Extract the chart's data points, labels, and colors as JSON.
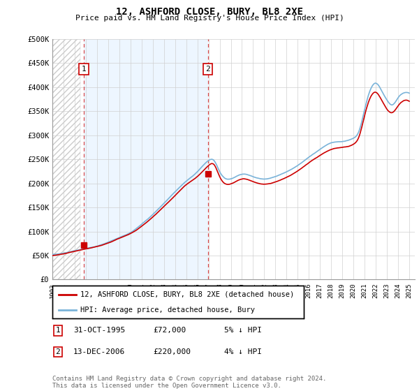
{
  "title": "12, ASHFORD CLOSE, BURY, BL8 2XE",
  "subtitle": "Price paid vs. HM Land Registry's House Price Index (HPI)",
  "ylim": [
    0,
    500000
  ],
  "yticks": [
    0,
    50000,
    100000,
    150000,
    200000,
    250000,
    300000,
    350000,
    400000,
    450000,
    500000
  ],
  "ytick_labels": [
    "£0",
    "£50K",
    "£100K",
    "£150K",
    "£200K",
    "£250K",
    "£300K",
    "£350K",
    "£400K",
    "£450K",
    "£500K"
  ],
  "legend_label_red": "12, ASHFORD CLOSE, BURY, BL8 2XE (detached house)",
  "legend_label_blue": "HPI: Average price, detached house, Bury",
  "footnote": "Contains HM Land Registry data © Crown copyright and database right 2024.\nThis data is licensed under the Open Government Licence v3.0.",
  "transaction1_label": "1",
  "transaction1_date": "31-OCT-1995",
  "transaction1_price": "£72,000",
  "transaction1_hpi": "5% ↓ HPI",
  "transaction2_label": "2",
  "transaction2_date": "13-DEC-2006",
  "transaction2_price": "£220,000",
  "transaction2_hpi": "4% ↓ HPI",
  "hpi_color": "#7ab3d9",
  "price_color": "#cc0000",
  "transaction1_x": 1995.83,
  "transaction1_y": 72000,
  "transaction2_x": 2006.95,
  "transaction2_y": 220000,
  "xlim": [
    1993.0,
    2025.5
  ],
  "xtick_years": [
    1993,
    1994,
    1995,
    1996,
    1997,
    1998,
    1999,
    2000,
    2001,
    2002,
    2003,
    2004,
    2005,
    2006,
    2007,
    2008,
    2009,
    2010,
    2011,
    2012,
    2013,
    2014,
    2015,
    2016,
    2017,
    2018,
    2019,
    2020,
    2021,
    2022,
    2023,
    2024,
    2025
  ],
  "hatch_end_x": 1995.5,
  "shaded_region_color": "#ddeeff",
  "hatch_color": "#bbbbbb"
}
